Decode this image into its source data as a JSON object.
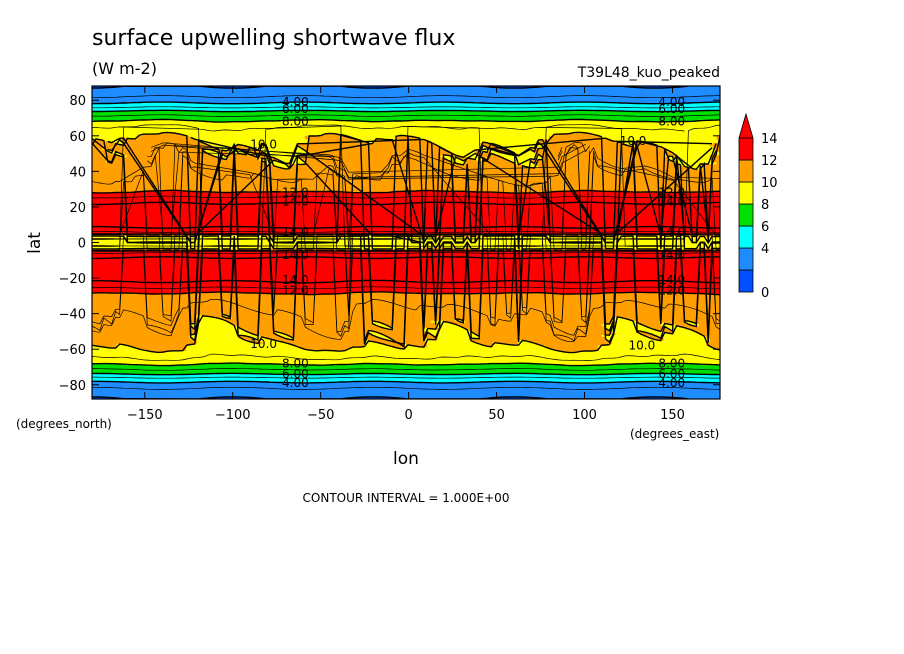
{
  "chart_data": {
    "type": "heatmap",
    "subtype": "filled-contour",
    "title": "surface upwelling shortwave flux",
    "units": "(W m-2)",
    "dataset": "T39L48_kuo_peaked",
    "xlabel": "lon",
    "ylabel": "lat",
    "x_units": "(degrees_east)",
    "y_units": "(degrees_north)",
    "xlim": [
      -180,
      177
    ],
    "ylim": [
      -88,
      88
    ],
    "x_ticks": [
      -150,
      -100,
      -50,
      0,
      50,
      100,
      150
    ],
    "x_tick_labels": [
      "−150",
      "−100",
      "−50",
      "0",
      "50",
      "100",
      "150"
    ],
    "y_ticks": [
      80,
      60,
      40,
      20,
      0,
      -20,
      -40,
      -60,
      -80
    ],
    "y_tick_labels": [
      "80",
      "60",
      "40",
      "20",
      "0",
      "−20",
      "−40",
      "−60",
      "−80"
    ],
    "contour_interval_text": "CONTOUR INTERVAL = 1.000E+00",
    "colorbar": {
      "levels": [
        0,
        2,
        4,
        6,
        8,
        10,
        12,
        14
      ],
      "tick_labels": [
        "0",
        "4",
        "6",
        "8",
        "10",
        "12",
        "14"
      ],
      "tick_values": [
        0,
        4,
        6,
        8,
        10,
        12,
        14
      ],
      "bin_colors": [
        "#0050ff",
        "#1e8cff",
        "#00ffff",
        "#00e000",
        "#ffff00",
        "#ffa000",
        "#ff0000"
      ],
      "extend": "max"
    },
    "zonal_profile": {
      "lat": [
        -88,
        -84,
        -80,
        -77,
        -74,
        -70,
        -66,
        -60,
        -55,
        -45,
        -30,
        -27,
        -24,
        -20,
        -15,
        -10,
        -7,
        -5,
        -4,
        -3,
        -2,
        -1,
        0,
        1,
        2,
        3,
        4,
        5,
        7,
        10,
        15,
        20,
        24,
        27,
        30,
        45,
        55,
        60,
        66,
        70,
        74,
        77,
        80,
        84,
        88
      ],
      "value": [
        2,
        2.5,
        3.5,
        4.5,
        6,
        7.5,
        8.8,
        9.8,
        10.2,
        10.5,
        11.5,
        12.5,
        13.5,
        14.5,
        14.8,
        14.5,
        13.5,
        12.5,
        10.5,
        9.5,
        9.0,
        9.5,
        10.0,
        9.5,
        9.0,
        9.5,
        10.5,
        12.5,
        13.5,
        14.5,
        14.8,
        14.5,
        13.5,
        12.5,
        11.5,
        10.5,
        10.2,
        9.8,
        8.8,
        7.5,
        6,
        4.5,
        3.5,
        2.5,
        2
      ]
    },
    "contour_labels": [
      {
        "text": "4.00",
        "lon": -72,
        "lat": 79
      },
      {
        "text": "6.00",
        "lon": -72,
        "lat": 75
      },
      {
        "text": "8.00",
        "lon": -72,
        "lat": 68
      },
      {
        "text": "10.0",
        "lon": -90,
        "lat": 55
      },
      {
        "text": "4.00",
        "lon": 142,
        "lat": 79
      },
      {
        "text": "6.00",
        "lon": 142,
        "lat": 75
      },
      {
        "text": "8.00",
        "lon": 142,
        "lat": 68
      },
      {
        "text": "10.0",
        "lon": 120,
        "lat": 57
      },
      {
        "text": "12.0",
        "lon": -72,
        "lat": 28
      },
      {
        "text": "14.0",
        "lon": -72,
        "lat": 23
      },
      {
        "text": "12.0",
        "lon": 142,
        "lat": 28
      },
      {
        "text": "14.0",
        "lon": 142,
        "lat": 23
      },
      {
        "text": "14.0",
        "lon": -72,
        "lat": -21
      },
      {
        "text": "12.0",
        "lon": -72,
        "lat": -27
      },
      {
        "text": "14.0",
        "lon": 142,
        "lat": -21
      },
      {
        "text": "12.0",
        "lon": 142,
        "lat": -27
      },
      {
        "text": "10.0",
        "lon": -90,
        "lat": -57
      },
      {
        "text": "8.00",
        "lon": -72,
        "lat": -68
      },
      {
        "text": "6.00",
        "lon": -72,
        "lat": -74
      },
      {
        "text": "4.00",
        "lon": -72,
        "lat": -79
      },
      {
        "text": "10.0",
        "lon": 125,
        "lat": -58
      },
      {
        "text": "8.00",
        "lon": 142,
        "lat": -68
      },
      {
        "text": "6.00",
        "lon": 142,
        "lat": -74
      },
      {
        "text": "4.00",
        "lon": 142,
        "lat": -79
      },
      {
        "text": "14.0",
        "lon": -72,
        "lat": 6
      },
      {
        "text": "14.0",
        "lon": 142,
        "lat": 6
      },
      {
        "text": "14.0",
        "lon": -72,
        "lat": -7
      },
      {
        "text": "14.0",
        "lon": 142,
        "lat": -7
      }
    ]
  }
}
